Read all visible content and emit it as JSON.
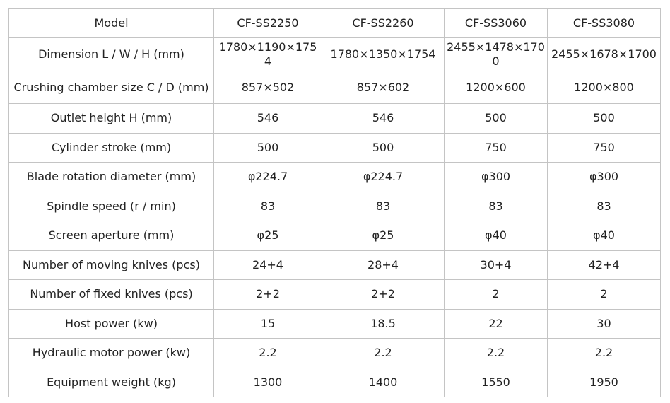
{
  "table": {
    "header": [
      "Model",
      "CF-SS2250",
      "CF-SS2260",
      "CF-SS3060",
      "CF-SS3080"
    ],
    "rows": [
      [
        "Dimension L / W / H (mm)",
        "1780×1190×1754",
        "1780×1350×1754",
        "2455×1478×1700",
        "2455×1678×1700"
      ],
      [
        "Crushing chamber size C / D (mm)",
        "857×502",
        "857×602",
        "1200×600",
        "1200×800"
      ],
      [
        "Outlet height H (mm)",
        "546",
        "546",
        "500",
        "500"
      ],
      [
        "Cylinder stroke (mm)",
        "500",
        "500",
        "750",
        "750"
      ],
      [
        "Blade rotation diameter (mm)",
        "φ224.7",
        "φ224.7",
        "φ300",
        "φ300"
      ],
      [
        "Spindle speed (r / min)",
        "83",
        "83",
        "83",
        "83"
      ],
      [
        "Screen aperture (mm)",
        "φ25",
        "φ25",
        "φ40",
        "φ40"
      ],
      [
        "Number of moving knives (pcs)",
        "24+4",
        "28+4",
        "30+4",
        "42+4"
      ],
      [
        "Number of fixed knives (pcs)",
        "2+2",
        "2+2",
        "2",
        "2"
      ],
      [
        "Host power (kw)",
        "15",
        "18.5",
        "22",
        "30"
      ],
      [
        "Hydraulic motor power (kw)",
        "2.2",
        "2.2",
        "2.2",
        "2.2"
      ],
      [
        "Equipment weight (kg)",
        "1300",
        "1400",
        "1550",
        "1950"
      ]
    ]
  }
}
